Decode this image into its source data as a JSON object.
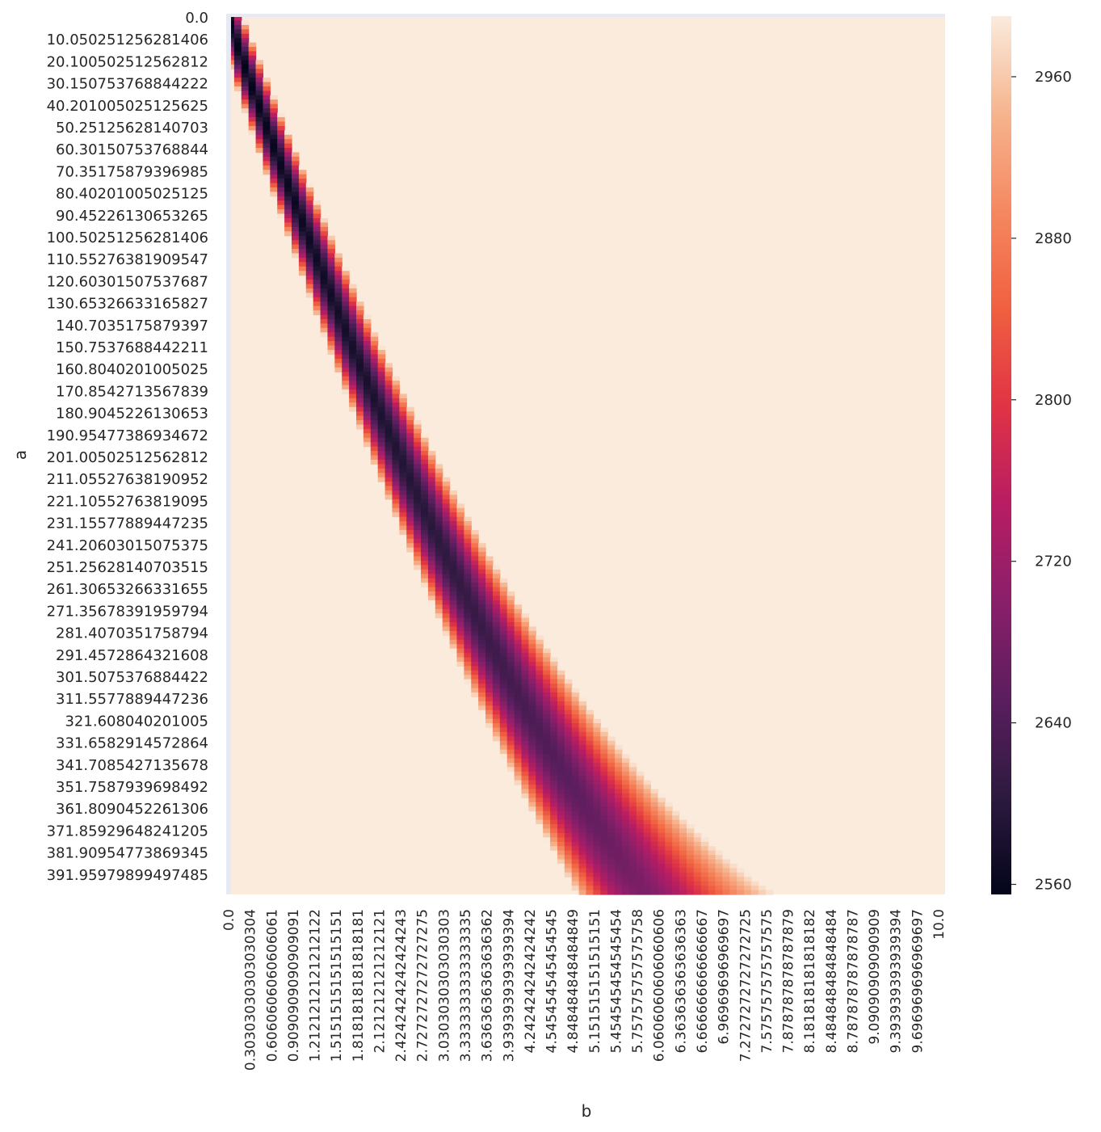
{
  "chart_data": {
    "type": "heatmap",
    "title": "",
    "xlabel": "b",
    "ylabel": "a",
    "x_ticks": [
      "0.0",
      "0.30303030303030304",
      "0.6060606060606061",
      "0.9090909090909091",
      "1.2121212121212122",
      "1.5151515151515151",
      "1.8181818181818181",
      "2.121212121212121",
      "2.4242424242424243",
      "2.7272727272727275",
      "3.0303030303030303",
      "3.3333333333333335",
      "3.6363636363636362",
      "3.9393939393939394",
      "4.242424242424242",
      "4.545454545454545",
      "4.848484848484849",
      "5.151515151515151",
      "5.454545454545454",
      "5.757575757575758",
      "6.0606060606060606",
      "6.363636363636363",
      "6.666666666666667",
      "6.96969696969697",
      "7.2727272727272725",
      "7.575757575757575",
      "7.878787878787879",
      "8.181818181818182",
      "8.484848484848484",
      "8.787878787878787",
      "9.09090909090909",
      "9.393939393939394",
      "9.696969696969697",
      "10.0"
    ],
    "y_ticks": [
      "0.0",
      "10.050251256281406",
      "20.100502512562812",
      "30.150753768844222",
      "40.201005025125625",
      "50.25125628140703",
      "60.30150753768844",
      "70.35175879396985",
      "80.40201005025125",
      "90.45226130653265",
      "100.50251256281406",
      "110.55276381909547",
      "120.60301507537687",
      "130.65326633165827",
      "140.7035175879397",
      "150.7537688442211",
      "160.8040201005025",
      "170.8542713567839",
      "180.9045226130653",
      "190.95477386934672",
      "201.00502512562812",
      "211.05527638190952",
      "221.10552763819095",
      "231.15577889447235",
      "241.20603015075375",
      "251.25628140703515",
      "261.30653266331655",
      "271.35678391959794",
      "281.4070351758794",
      "291.4572864321608",
      "301.5075376884422",
      "311.5577889447236",
      "321.608040201005",
      "331.6582914572864",
      "341.7085427135678",
      "351.7587939698492",
      "361.8090452261306",
      "371.85929648241205",
      "381.90954773869345",
      "391.95979899497485"
    ],
    "x_range": [
      0.0,
      10.0
    ],
    "y_range": [
      0.0,
      400.0
    ],
    "n_cols": 100,
    "n_rows": 200,
    "colorbar": {
      "ticks": [
        2560,
        2640,
        2720,
        2800,
        2880,
        2960
      ],
      "range": [
        2555,
        2990
      ]
    },
    "colormap_stops": [
      "#03051a",
      "#2d1a3f",
      "#5a1e5e",
      "#8a1f6a",
      "#b81d63",
      "#e03345",
      "#f06040",
      "#f58860",
      "#f6b48e",
      "#faebdd"
    ],
    "value_model": {
      "band_center_formula": "a = 94*b - 4.4*b^2",
      "band_half_width_formula": "19 + 5.6*b",
      "min_value_formula": "2553 + 10*b + 2.2*b^2",
      "outside_value": 2990
    },
    "grid": false,
    "legend": "colorbar-right"
  }
}
